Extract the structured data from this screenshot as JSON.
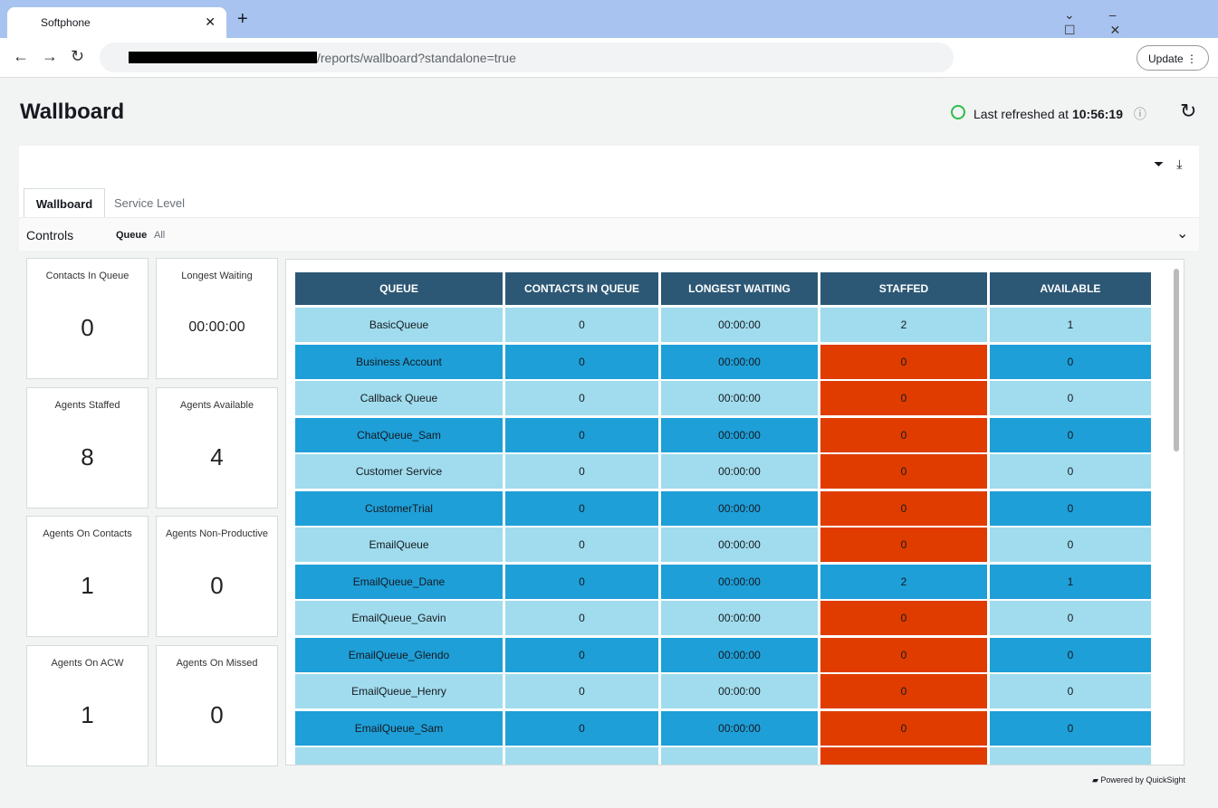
{
  "browser": {
    "tab_title": "Softphone",
    "url": "/reports/wallboard?standalone=true",
    "update_button": "Update"
  },
  "header": {
    "title": "Wallboard",
    "refresh_label": "Last refreshed at",
    "refresh_time": "10:56:19"
  },
  "tabs": [
    "Wallboard",
    "Service Level"
  ],
  "controls": {
    "label": "Controls",
    "filter_name": "Queue",
    "filter_value": "All"
  },
  "kpis": [
    {
      "label": "Contacts In Queue",
      "value": 0
    },
    {
      "label": "Longest Waiting",
      "value": "00:00:00"
    },
    {
      "label": "Agents Staffed",
      "value": 8
    },
    {
      "label": "Agents Available",
      "value": 4
    },
    {
      "label": "Agents On Contacts",
      "value": 1
    },
    {
      "label": "Agents Non-Productive",
      "value": 0
    },
    {
      "label": "Agents On ACW",
      "value": 1
    },
    {
      "label": "Agents On Missed",
      "value": 0
    }
  ],
  "table": {
    "columns": [
      "QUEUE",
      "CONTACTS IN QUEUE",
      "LONGEST WAITING",
      "STAFFED",
      "AVAILABLE"
    ],
    "rows": [
      [
        "BasicQueue",
        0,
        "00:00:00",
        2,
        1
      ],
      [
        "Business Account",
        0,
        "00:00:00",
        0,
        0
      ],
      [
        "Callback Queue",
        0,
        "00:00:00",
        0,
        0
      ],
      [
        "ChatQueue_Sam",
        0,
        "00:00:00",
        0,
        0
      ],
      [
        "Customer Service",
        0,
        "00:00:00",
        0,
        0
      ],
      [
        "CustomerTrial",
        0,
        "00:00:00",
        0,
        0
      ],
      [
        "EmailQueue",
        0,
        "00:00:00",
        0,
        0
      ],
      [
        "EmailQueue_Dane",
        0,
        "00:00:00",
        2,
        1
      ],
      [
        "EmailQueue_Gavin",
        0,
        "00:00:00",
        0,
        0
      ],
      [
        "EmailQueue_Glendo",
        0,
        "00:00:00",
        0,
        0
      ],
      [
        "EmailQueue_Henry",
        0,
        "00:00:00",
        0,
        0
      ],
      [
        "EmailQueue_Sam",
        0,
        "00:00:00",
        0,
        0
      ]
    ]
  },
  "footer": "Powered by QuickSight"
}
